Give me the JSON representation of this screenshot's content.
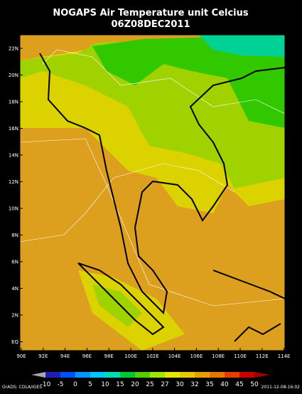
{
  "header": {
    "title": "NOGAPS Air Temperature unit Celcius",
    "subtitle": "06Z08DEC2011"
  },
  "map": {
    "lat_labels": [
      "22N",
      "20N",
      "18N",
      "16N",
      "14N",
      "12N",
      "10N",
      "8N",
      "6N",
      "4N",
      "2N",
      "EQ"
    ],
    "lon_labels": [
      "90E",
      "92E",
      "94E",
      "96E",
      "98E",
      "100E",
      "102E",
      "104E",
      "106E",
      "108E",
      "110E",
      "112E",
      "114E"
    ]
  },
  "colorbar": {
    "labels": [
      -10,
      -5,
      0,
      5,
      10,
      15,
      20,
      25,
      27,
      30,
      32,
      35,
      40,
      45,
      50
    ],
    "under_color": "#a8a8a8",
    "colors": [
      "#1e1eb4",
      "#0050ff",
      "#0096ff",
      "#00c8ff",
      "#00dcb4",
      "#00c832",
      "#50d200",
      "#a0e600",
      "#e6e600",
      "#e6c800",
      "#e6a000",
      "#e67800",
      "#e63c00",
      "#c80000"
    ],
    "over_color": "#a00000"
  },
  "footer": {
    "left": "GrADS: COLA/IGES",
    "right": "2011-12-08-16:02"
  }
}
